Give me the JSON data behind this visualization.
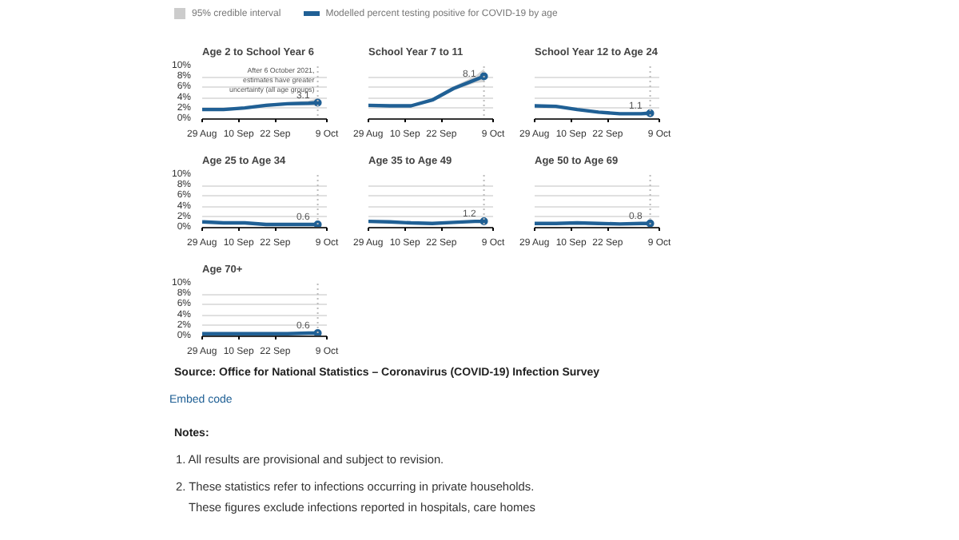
{
  "chart_data": [
    {
      "type": "line",
      "title": "Age 2 to School Year 6",
      "x": [
        "2021-08-29",
        "2021-09-05",
        "2021-09-12",
        "2021-09-19",
        "2021-09-26",
        "2021-10-03",
        "2021-10-06"
      ],
      "xlim": [
        "2021-08-29",
        "2021-10-09"
      ],
      "xticks": [
        {
          "value": "2021-08-29",
          "label": "29 Aug"
        },
        {
          "value": "2021-09-10",
          "label": "10 Sep"
        },
        {
          "value": "2021-09-22",
          "label": "22 Sep"
        },
        {
          "value": "2021-10-09",
          "label": "9 Oct"
        }
      ],
      "ylim": [
        0,
        10
      ],
      "yticks": [
        {
          "value": 0,
          "label": "0%"
        },
        {
          "value": 2,
          "label": "2%"
        },
        {
          "value": 4,
          "label": "4%"
        },
        {
          "value": 6,
          "label": "6%"
        },
        {
          "value": 8,
          "label": "8%"
        },
        {
          "value": 10,
          "label": "10%"
        }
      ],
      "grid": "y",
      "legend": "top",
      "series": [
        {
          "name": "Modelled percent testing positive for COVID-19 by age",
          "color": "#206095",
          "values": [
            1.8,
            1.8,
            2.1,
            2.6,
            2.9,
            3.0,
            3.1
          ],
          "lower": [
            1.5,
            1.5,
            1.8,
            2.3,
            2.6,
            2.6,
            2.4
          ],
          "upper": [
            2.1,
            2.1,
            2.4,
            2.9,
            3.2,
            3.5,
            3.9
          ],
          "value_labels": [
            null,
            null,
            null,
            null,
            null,
            null,
            "3.1"
          ]
        }
      ],
      "ref_lines": [
        {
          "axis": "x",
          "value": "2021-10-06",
          "label": null,
          "line_style": "dotted",
          "color": "#bbbbbb"
        }
      ],
      "annotations": [
        "95% credible interval",
        "After 6 October 2021, estimates have greater uncertainty (all age groups)"
      ]
    },
    {
      "type": "line",
      "title": "School Year 7 to 11",
      "x": [
        "2021-08-29",
        "2021-09-05",
        "2021-09-12",
        "2021-09-19",
        "2021-09-26",
        "2021-10-03",
        "2021-10-06"
      ],
      "xlim": [
        "2021-08-29",
        "2021-10-09"
      ],
      "xticks": [
        {
          "value": "2021-08-29",
          "label": "29 Aug"
        },
        {
          "value": "2021-09-10",
          "label": "10 Sep"
        },
        {
          "value": "2021-09-22",
          "label": "22 Sep"
        },
        {
          "value": "2021-10-09",
          "label": "9 Oct"
        }
      ],
      "ylim": [
        0,
        10
      ],
      "yticks": [
        0,
        2,
        4,
        6,
        8,
        10
      ],
      "grid": "y",
      "tick_labels": "x",
      "series": [
        {
          "color": "#206095",
          "values": [
            2.6,
            2.5,
            2.5,
            3.6,
            5.8,
            7.4,
            8.1
          ],
          "lower": [
            2.4,
            2.3,
            2.3,
            3.3,
            5.4,
            6.8,
            7.0
          ],
          "upper": [
            2.8,
            2.7,
            2.7,
            3.9,
            6.2,
            8.1,
            9.5
          ],
          "value_labels": [
            null,
            null,
            null,
            null,
            null,
            null,
            "8.1"
          ]
        }
      ],
      "ref_lines": [
        {
          "axis": "x",
          "value": "2021-10-06",
          "label": null,
          "line_style": "dotted",
          "color": "#bbbbbb"
        }
      ]
    },
    {
      "type": "line",
      "title": "School Year 12 to Age 24",
      "x": [
        "2021-08-29",
        "2021-09-05",
        "2021-09-12",
        "2021-09-19",
        "2021-09-26",
        "2021-10-03",
        "2021-10-06"
      ],
      "xlim": [
        "2021-08-29",
        "2021-10-09"
      ],
      "xticks": [
        {
          "value": "2021-08-29",
          "label": "29 Aug"
        },
        {
          "value": "2021-09-10",
          "label": "10 Sep"
        },
        {
          "value": "2021-09-22",
          "label": "22 Sep"
        },
        {
          "value": "2021-10-09",
          "label": "9 Oct"
        }
      ],
      "ylim": [
        0,
        10
      ],
      "yticks": [
        0,
        2,
        4,
        6,
        8,
        10
      ],
      "grid": "y",
      "tick_labels": "x",
      "series": [
        {
          "color": "#206095",
          "values": [
            2.5,
            2.4,
            1.8,
            1.3,
            1.0,
            1.0,
            1.1
          ],
          "lower": [
            2.3,
            2.2,
            1.6,
            1.1,
            0.9,
            0.8,
            0.8
          ],
          "upper": [
            2.7,
            2.6,
            2.0,
            1.5,
            1.1,
            1.3,
            1.6
          ],
          "value_labels": [
            null,
            null,
            null,
            null,
            null,
            null,
            "1.1"
          ]
        }
      ],
      "ref_lines": [
        {
          "axis": "x",
          "value": "2021-10-06",
          "label": null,
          "line_style": "dotted",
          "color": "#bbbbbb"
        }
      ]
    },
    {
      "type": "line",
      "title": "Age 25 to Age 34",
      "x": [
        "2021-08-29",
        "2021-09-05",
        "2021-09-12",
        "2021-09-19",
        "2021-09-26",
        "2021-10-03",
        "2021-10-06"
      ],
      "xlim": [
        "2021-08-29",
        "2021-10-09"
      ],
      "xticks": [
        {
          "value": "2021-08-29",
          "label": "29 Aug"
        },
        {
          "value": "2021-09-10",
          "label": "10 Sep"
        },
        {
          "value": "2021-09-22",
          "label": "22 Sep"
        },
        {
          "value": "2021-10-09",
          "label": "9 Oct"
        }
      ],
      "ylim": [
        0,
        10
      ],
      "yticks": [
        {
          "value": 0,
          "label": "0%"
        },
        {
          "value": 2,
          "label": "2%"
        },
        {
          "value": 4,
          "label": "4%"
        },
        {
          "value": 6,
          "label": "6%"
        },
        {
          "value": 8,
          "label": "8%"
        },
        {
          "value": 10,
          "label": "10%"
        }
      ],
      "grid": "y",
      "series": [
        {
          "color": "#206095",
          "values": [
            1.1,
            0.9,
            0.9,
            0.6,
            0.6,
            0.6,
            0.6
          ],
          "value_labels": [
            null,
            null,
            null,
            null,
            null,
            null,
            "0.6"
          ]
        }
      ],
      "ref_lines": [
        {
          "axis": "x",
          "value": "2021-10-06",
          "label": null,
          "line_style": "dotted",
          "color": "#bbbbbb"
        }
      ]
    },
    {
      "type": "line",
      "title": "Age 35 to Age 49",
      "x": [
        "2021-08-29",
        "2021-09-05",
        "2021-09-12",
        "2021-09-19",
        "2021-09-26",
        "2021-10-03",
        "2021-10-06"
      ],
      "xlim": [
        "2021-08-29",
        "2021-10-09"
      ],
      "xticks": [
        {
          "value": "2021-08-29",
          "label": "29 Aug"
        },
        {
          "value": "2021-09-10",
          "label": "10 Sep"
        },
        {
          "value": "2021-09-22",
          "label": "22 Sep"
        },
        {
          "value": "2021-10-09",
          "label": "9 Oct"
        }
      ],
      "ylim": [
        0,
        10
      ],
      "yticks": [
        0,
        2,
        4,
        6,
        8,
        10
      ],
      "grid": "y",
      "tick_labels": "x",
      "series": [
        {
          "color": "#206095",
          "values": [
            1.2,
            1.1,
            0.9,
            0.8,
            1.0,
            1.2,
            1.2
          ],
          "value_labels": [
            null,
            null,
            null,
            null,
            null,
            null,
            "1.2"
          ]
        }
      ],
      "ref_lines": [
        {
          "axis": "x",
          "value": "2021-10-06",
          "label": null,
          "line_style": "dotted",
          "color": "#bbbbbb"
        }
      ]
    },
    {
      "type": "line",
      "title": "Age 50 to Age 69",
      "x": [
        "2021-08-29",
        "2021-09-05",
        "2021-09-12",
        "2021-09-19",
        "2021-09-26",
        "2021-10-03",
        "2021-10-06"
      ],
      "xlim": [
        "2021-08-29",
        "2021-10-09"
      ],
      "xticks": [
        {
          "value": "2021-08-29",
          "label": "29 Aug"
        },
        {
          "value": "2021-09-10",
          "label": "10 Sep"
        },
        {
          "value": "2021-09-22",
          "label": "22 Sep"
        },
        {
          "value": "2021-10-09",
          "label": "9 Oct"
        }
      ],
      "ylim": [
        0,
        10
      ],
      "yticks": [
        0,
        2,
        4,
        6,
        8,
        10
      ],
      "grid": "y",
      "tick_labels": "x",
      "series": [
        {
          "color": "#206095",
          "values": [
            0.8,
            0.8,
            0.9,
            0.8,
            0.7,
            0.8,
            0.8
          ],
          "value_labels": [
            null,
            null,
            null,
            null,
            null,
            null,
            "0.8"
          ]
        }
      ],
      "ref_lines": [
        {
          "axis": "x",
          "value": "2021-10-06",
          "label": null,
          "line_style": "dotted",
          "color": "#bbbbbb"
        }
      ]
    },
    {
      "type": "line",
      "title": "Age 70+",
      "x": [
        "2021-08-29",
        "2021-09-05",
        "2021-09-12",
        "2021-09-19",
        "2021-09-26",
        "2021-10-03",
        "2021-10-06"
      ],
      "xlim": [
        "2021-08-29",
        "2021-10-09"
      ],
      "xticks": [
        {
          "value": "2021-08-29",
          "label": "29 Aug"
        },
        {
          "value": "2021-09-10",
          "label": "10 Sep"
        },
        {
          "value": "2021-09-22",
          "label": "22 Sep"
        },
        {
          "value": "2021-10-09",
          "label": "9 Oct"
        }
      ],
      "ylim": [
        0,
        10
      ],
      "yticks": [
        {
          "value": 0,
          "label": "0%"
        },
        {
          "value": 2,
          "label": "2%"
        },
        {
          "value": 4,
          "label": "4%"
        },
        {
          "value": 6,
          "label": "6%"
        },
        {
          "value": 8,
          "label": "8%"
        },
        {
          "value": 10,
          "label": "10%"
        }
      ],
      "grid": "y",
      "series": [
        {
          "color": "#206095",
          "values": [
            0.5,
            0.5,
            0.5,
            0.5,
            0.5,
            0.6,
            0.6
          ],
          "value_labels": [
            null,
            null,
            null,
            null,
            null,
            null,
            "0.6"
          ]
        }
      ],
      "ref_lines": [
        {
          "axis": "x",
          "value": "2021-10-06",
          "label": null,
          "line_style": "dotted",
          "color": "#bbbbbb"
        }
      ],
      "annotations": [
        "Source: Office for National Statistics – Coronavirus (COVID-19) Infection Survey",
        "Embed code",
        "Notes:",
        "1. All results are provisional and subject to revision.",
        "2. These statistics refer to infections occurring in private households.",
        "These figures exclude infections reported in hospitals, care homes"
      ]
    }
  ]
}
